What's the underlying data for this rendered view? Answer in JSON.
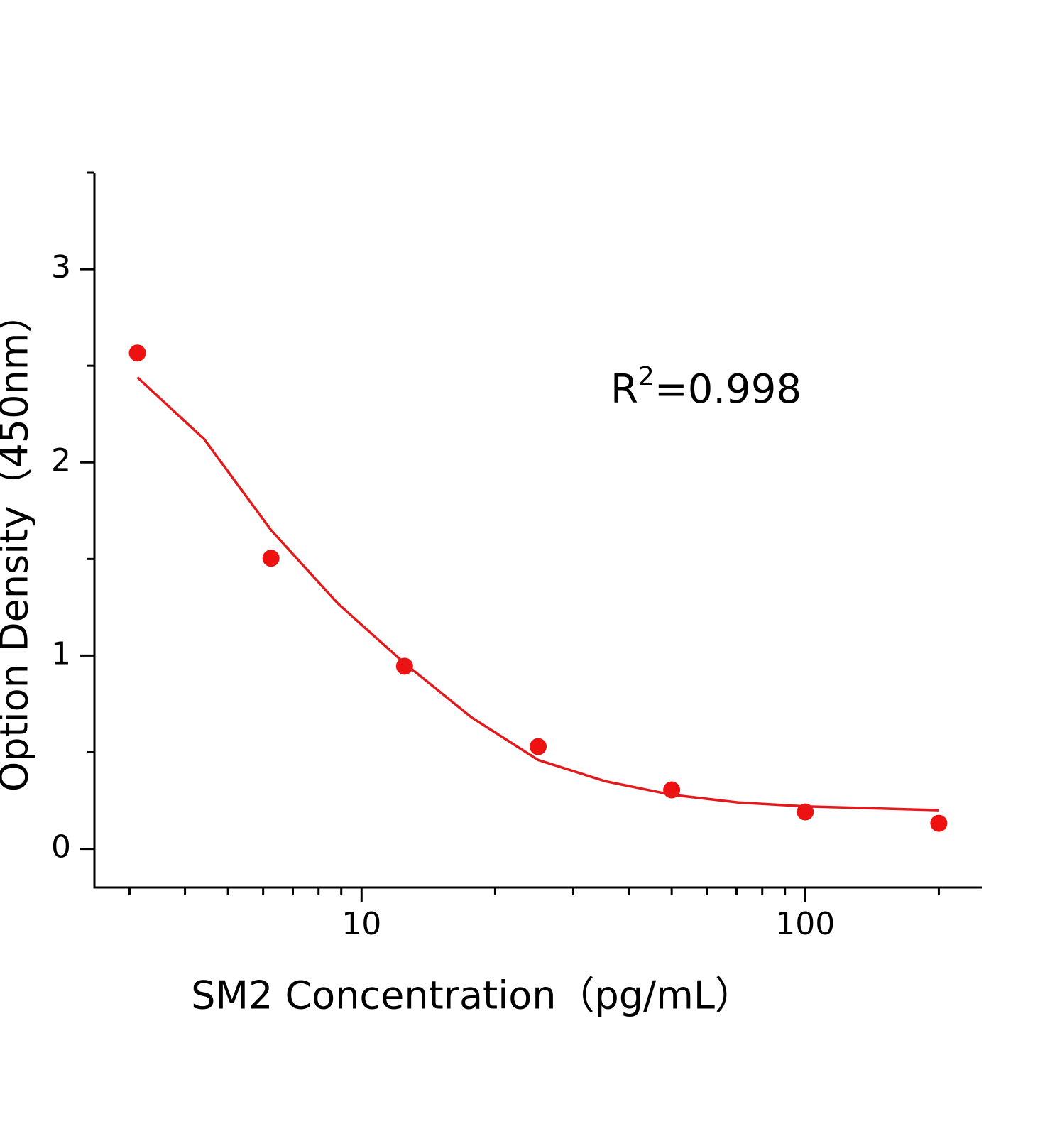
{
  "chart_data": {
    "type": "scatter",
    "x_label": "SM2 Concentration（pg/mL）",
    "y_label": "Option Density（450nm）",
    "annotation": {
      "base": "R",
      "superscript": "2",
      "text": "=0.998"
    },
    "xscale": "log",
    "xlim": [
      2.5,
      250
    ],
    "xticks": [
      10,
      100
    ],
    "xminor": [
      3,
      4,
      5,
      6,
      7,
      8,
      9,
      20,
      30,
      40,
      50,
      60,
      70,
      80,
      90,
      200
    ],
    "ylim": [
      -0.2,
      3.5
    ],
    "yticks": [
      0,
      1,
      2,
      3
    ],
    "yminor": [
      0.5,
      1.5,
      2.5,
      3.5
    ],
    "grid": false,
    "series": [
      {
        "kind": "points",
        "color": "#ee1111",
        "x": [
          3.125,
          6.25,
          12.5,
          25,
          50,
          100,
          200
        ],
        "values": [
          2.566,
          1.504,
          0.945,
          0.529,
          0.305,
          0.191,
          0.132
        ]
      },
      {
        "kind": "fit",
        "color": "#e31a1c",
        "x": [
          3.125,
          4.42,
          6.25,
          8.84,
          12.5,
          17.7,
          25,
          35.4,
          50,
          70.7,
          100,
          141,
          200
        ],
        "values": [
          2.44,
          2.12,
          1.65,
          1.27,
          0.96,
          0.68,
          0.46,
          0.35,
          0.28,
          0.24,
          0.22,
          0.21,
          0.2
        ]
      }
    ]
  }
}
